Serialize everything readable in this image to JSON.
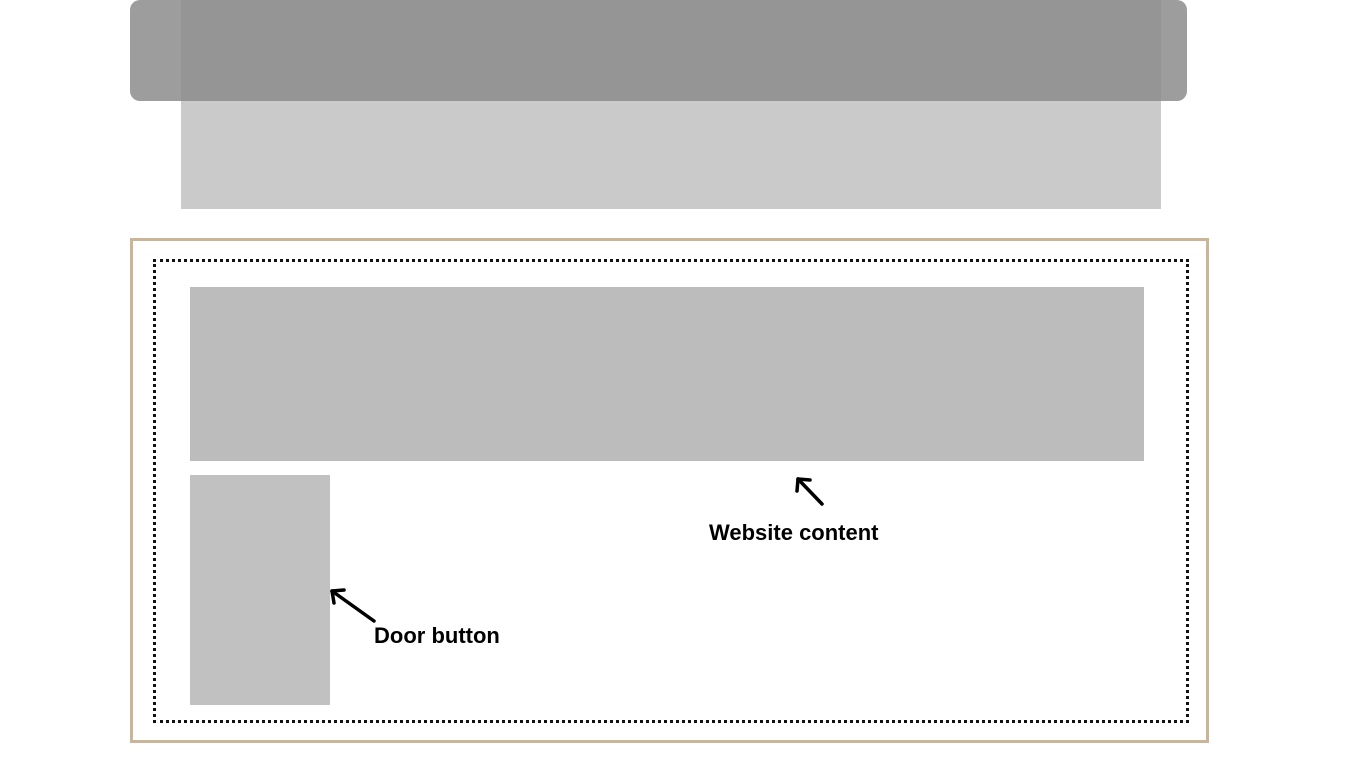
{
  "labels": {
    "website_content": "Website content",
    "door_button": "Door button"
  },
  "colors": {
    "header_bar": "#8c8c8c",
    "header_back": "#cacaca",
    "frame_border": "#cbb597",
    "content_block": "#bcbcbc",
    "door_block": "#c1c1c1"
  }
}
